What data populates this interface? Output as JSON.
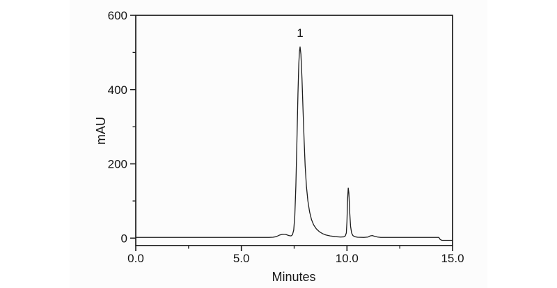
{
  "figure": {
    "kind": "chromatogram",
    "background_color": "#ffffff",
    "plot_background_color": "#fcfcfc",
    "line_color": "#1c1c1c",
    "text_color": "#161616"
  },
  "chart_data": {
    "type": "line",
    "title": "",
    "xlabel": "Minutes",
    "ylabel": "mAU",
    "xlim": [
      0.0,
      15.0
    ],
    "ylim": [
      -20,
      600
    ],
    "grid": false,
    "frame": "box",
    "x_ticks": {
      "major": [
        {
          "value": 0.0,
          "label": "0.0"
        },
        {
          "value": 5.0,
          "label": "5.0"
        },
        {
          "value": 10.0,
          "label": "10.0"
        },
        {
          "value": 15.0,
          "label": "15.0"
        }
      ],
      "minor": [
        2.5,
        7.5,
        12.5
      ]
    },
    "y_ticks": {
      "major": [
        {
          "value": 0,
          "label": "0"
        },
        {
          "value": 200,
          "label": "200"
        },
        {
          "value": 400,
          "label": "400"
        },
        {
          "value": 600,
          "label": "600"
        }
      ],
      "minor": [
        100,
        300,
        500
      ]
    },
    "annotations": [
      {
        "text": "1",
        "x": 7.78,
        "y": 542
      }
    ],
    "peaks": [
      {
        "label": "1",
        "retention_time_min": 7.8,
        "height_mAU": 515
      },
      {
        "label": "",
        "retention_time_min": 10.1,
        "height_mAU": 135
      }
    ],
    "series": [
      {
        "name": "UV signal",
        "color": "#1c1c1c",
        "points": [
          [
            0.0,
            2
          ],
          [
            1.0,
            2
          ],
          [
            2.0,
            2
          ],
          [
            3.0,
            2
          ],
          [
            4.0,
            2
          ],
          [
            5.0,
            2
          ],
          [
            6.0,
            2
          ],
          [
            6.3,
            2
          ],
          [
            6.5,
            2.5
          ],
          [
            6.65,
            4
          ],
          [
            6.8,
            8
          ],
          [
            6.95,
            10.5
          ],
          [
            7.1,
            10
          ],
          [
            7.25,
            7
          ],
          [
            7.35,
            6
          ],
          [
            7.42,
            9
          ],
          [
            7.48,
            22
          ],
          [
            7.53,
            60
          ],
          [
            7.58,
            140
          ],
          [
            7.63,
            260
          ],
          [
            7.68,
            390
          ],
          [
            7.72,
            470
          ],
          [
            7.75,
            502
          ],
          [
            7.78,
            515
          ],
          [
            7.82,
            495
          ],
          [
            7.87,
            430
          ],
          [
            7.92,
            345
          ],
          [
            7.97,
            265
          ],
          [
            8.02,
            195
          ],
          [
            8.08,
            140
          ],
          [
            8.15,
            100
          ],
          [
            8.23,
            71
          ],
          [
            8.32,
            50
          ],
          [
            8.42,
            36
          ],
          [
            8.55,
            25
          ],
          [
            8.7,
            17
          ],
          [
            8.85,
            12
          ],
          [
            9.0,
            8.5
          ],
          [
            9.2,
            6
          ],
          [
            9.45,
            4
          ],
          [
            9.7,
            3
          ],
          [
            9.85,
            3.5
          ],
          [
            9.92,
            6
          ],
          [
            9.97,
            14
          ],
          [
            10.0,
            45
          ],
          [
            10.03,
            105
          ],
          [
            10.06,
            135
          ],
          [
            10.09,
            122
          ],
          [
            10.13,
            70
          ],
          [
            10.17,
            32
          ],
          [
            10.22,
            14
          ],
          [
            10.28,
            7
          ],
          [
            10.36,
            4
          ],
          [
            10.5,
            2.5
          ],
          [
            10.8,
            2
          ],
          [
            11.0,
            3
          ],
          [
            11.1,
            6
          ],
          [
            11.2,
            7
          ],
          [
            11.3,
            5
          ],
          [
            11.45,
            3
          ],
          [
            11.6,
            2
          ],
          [
            12.5,
            2
          ],
          [
            13.5,
            2
          ],
          [
            14.35,
            2
          ],
          [
            14.42,
            -4
          ],
          [
            14.5,
            -6
          ],
          [
            15.0,
            -6
          ]
        ]
      }
    ]
  }
}
